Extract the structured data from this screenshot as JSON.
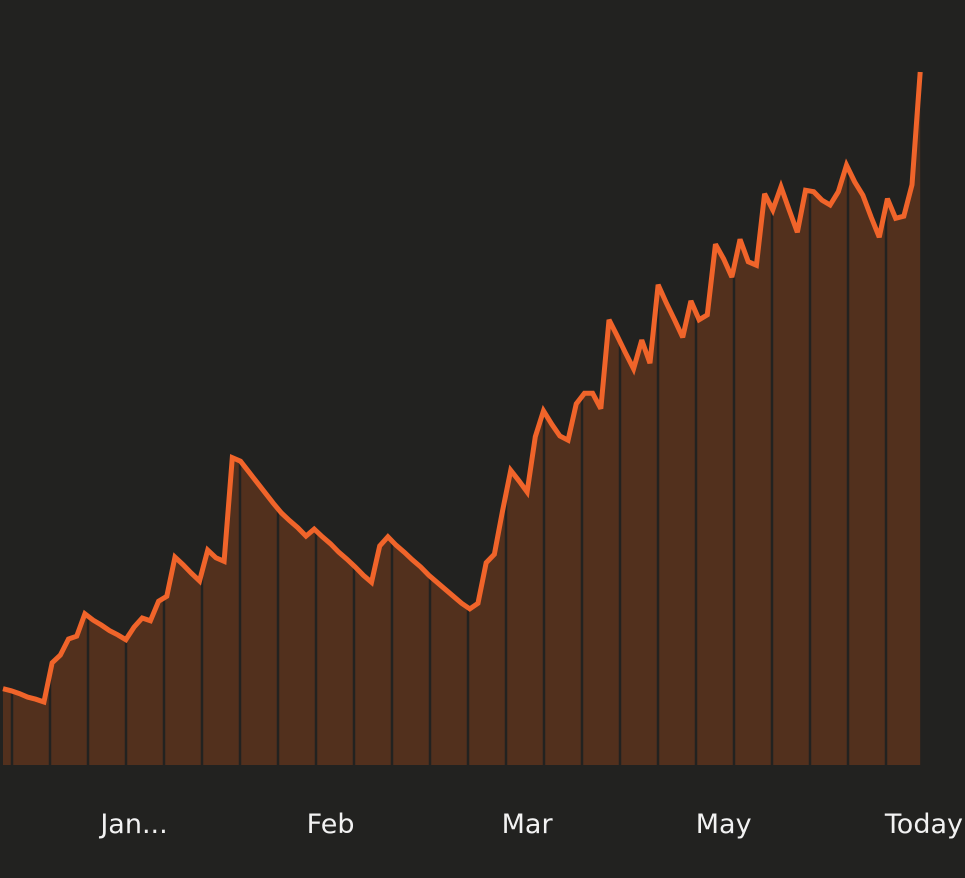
{
  "chart_data": {
    "type": "area",
    "categories": [
      null,
      null,
      null,
      null,
      null,
      null,
      null,
      null,
      null,
      null,
      null,
      null,
      null,
      null,
      null,
      null,
      "Jan...",
      null,
      null,
      null,
      null,
      null,
      null,
      null,
      null,
      null,
      null,
      null,
      null,
      null,
      null,
      null,
      null,
      null,
      null,
      null,
      null,
      null,
      null,
      null,
      "Feb",
      null,
      null,
      null,
      null,
      null,
      null,
      null,
      null,
      null,
      null,
      null,
      null,
      null,
      null,
      null,
      null,
      null,
      null,
      null,
      null,
      null,
      null,
      null,
      "Mar",
      null,
      null,
      null,
      null,
      null,
      null,
      null,
      null,
      null,
      null,
      null,
      null,
      null,
      null,
      null,
      null,
      null,
      null,
      null,
      null,
      null,
      null,
      null,
      "May",
      null,
      null,
      null,
      null,
      null,
      null,
      null,
      null,
      null,
      null,
      null,
      null,
      null,
      null,
      null,
      null,
      null,
      null,
      null,
      null,
      null,
      null,
      null,
      "Today"
    ],
    "values": [
      10.9,
      10.6,
      10.2,
      9.7,
      9.4,
      9.0,
      14.6,
      15.7,
      18.0,
      18.4,
      21.6,
      20.7,
      20.0,
      19.2,
      18.6,
      17.9,
      19.7,
      21.0,
      20.6,
      23.4,
      24.1,
      29.7,
      28.6,
      27.4,
      26.3,
      30.7,
      29.6,
      29.1,
      43.9,
      43.4,
      41.9,
      40.4,
      38.9,
      37.4,
      36.0,
      34.9,
      33.9,
      32.7,
      33.7,
      32.6,
      31.6,
      30.4,
      29.4,
      28.3,
      27.1,
      26.1,
      31.3,
      32.6,
      31.4,
      30.4,
      29.3,
      28.3,
      27.1,
      26.1,
      25.1,
      24.1,
      23.1,
      22.3,
      23.1,
      28.9,
      30.1,
      36.3,
      42.1,
      40.6,
      39.0,
      46.9,
      50.6,
      48.7,
      47.0,
      46.4,
      51.6,
      53.1,
      53.1,
      50.9,
      63.6,
      61.3,
      58.9,
      56.6,
      60.7,
      57.4,
      68.6,
      66.0,
      63.6,
      61.1,
      66.3,
      63.6,
      64.3,
      74.4,
      72.3,
      69.7,
      75.1,
      71.9,
      71.4,
      81.6,
      79.3,
      82.6,
      79.3,
      76.1,
      82.1,
      81.9,
      80.7,
      80.0,
      81.9,
      85.7,
      83.3,
      81.4,
      78.3,
      75.4,
      80.9,
      78.1,
      78.4,
      82.9,
      99.0
    ],
    "ylim": [
      0,
      100
    ],
    "line_color": "#f0642a",
    "fill_color": "#52301d"
  }
}
